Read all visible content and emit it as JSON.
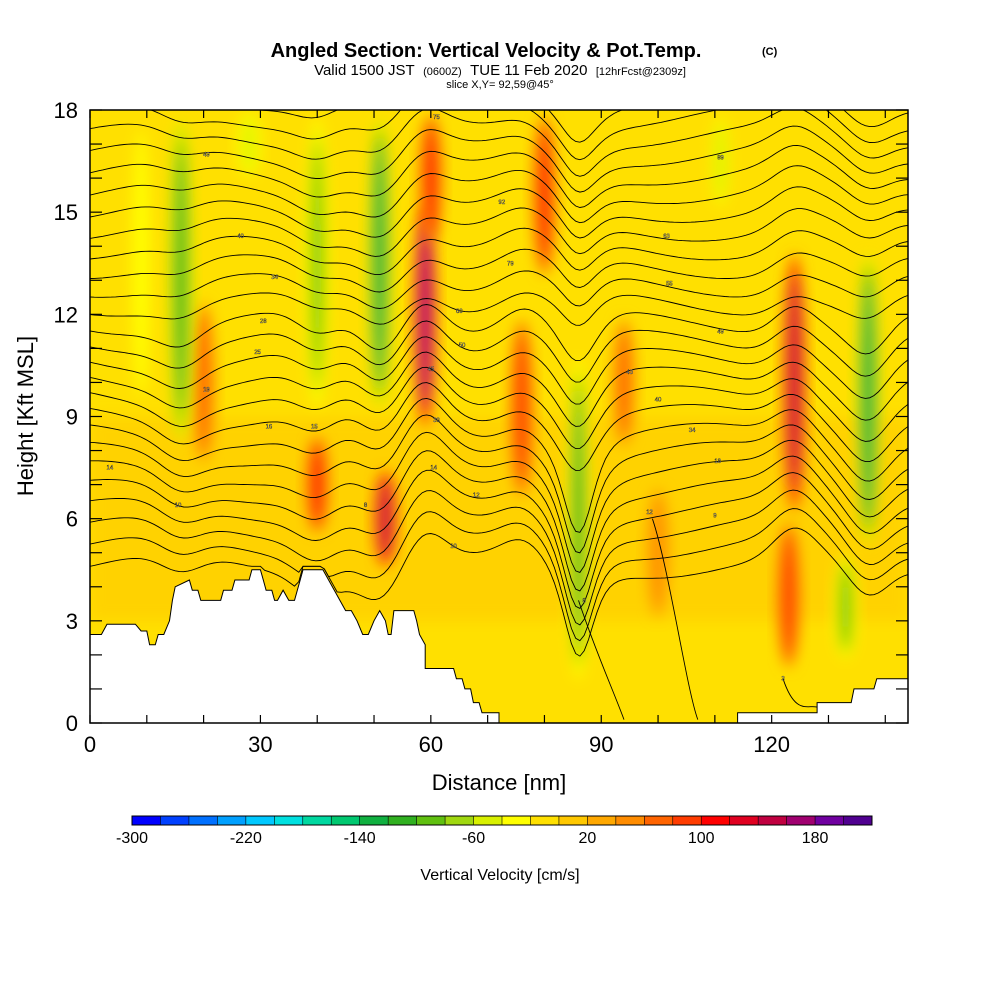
{
  "chart_data": {
    "type": "heatmap",
    "title": "Angled Section: Vertical Velocity & Pot.Temp.",
    "title_suffix": "(C)",
    "subtitle_parts": [
      "Valid 1500 JST",
      "(0600Z)",
      "TUE 11 Feb 2020",
      "[12hrFcst@2309z]"
    ],
    "slice_label": "slice X,Y= 92,59@45°",
    "xlabel": "Distance [nm]",
    "ylabel": "Height [Kft MSL]",
    "xlim": [
      0,
      144
    ],
    "ylim": [
      0,
      18
    ],
    "xticks": [
      0,
      30,
      60,
      90,
      120
    ],
    "yticks": [
      0,
      3,
      6,
      9,
      12,
      15,
      18
    ],
    "colorbar": {
      "label": "Vertical Velocity [cm/s]",
      "range": [
        -300,
        220
      ],
      "step": 20,
      "tick_values": [
        -300,
        -220,
        -140,
        -60,
        20,
        100,
        180
      ],
      "colors": [
        "#0000ff",
        "#0040ff",
        "#0070ff",
        "#00a0ff",
        "#00c8ff",
        "#00e0e0",
        "#00d8a0",
        "#00c870",
        "#10b040",
        "#30b020",
        "#60c010",
        "#a0d810",
        "#d8f000",
        "#ffff00",
        "#ffe000",
        "#ffc800",
        "#ffa800",
        "#ff8c00",
        "#ff6400",
        "#ff3c00",
        "#ff0000",
        "#e00020",
        "#c00040",
        "#a00070",
        "#7000a0",
        "#500090"
      ]
    },
    "updrafts": [
      {
        "x": 20,
        "z0": 7.5,
        "z1": 12.5,
        "w": 70
      },
      {
        "x": 40,
        "z0": 5.5,
        "z1": 8.5,
        "w": 100
      },
      {
        "x": 52,
        "z0": 4.5,
        "z1": 7.5,
        "w": 140
      },
      {
        "x": 59,
        "z0": 8.5,
        "z1": 15.5,
        "w": 170
      },
      {
        "x": 60,
        "z0": 14,
        "z1": 18,
        "w": 110
      },
      {
        "x": 76,
        "z0": 6.5,
        "z1": 12,
        "w": 90
      },
      {
        "x": 80,
        "z0": 13,
        "z1": 18,
        "w": 100
      },
      {
        "x": 100,
        "z0": 3,
        "z1": 7,
        "w": 50
      },
      {
        "x": 124,
        "z0": 6,
        "z1": 14,
        "w": 150
      },
      {
        "x": 123,
        "z0": 1.5,
        "z1": 6,
        "w": 90
      },
      {
        "x": 94,
        "z0": 8,
        "z1": 12,
        "w": 60
      }
    ],
    "downdrafts": [
      {
        "x": 16,
        "z0": 8,
        "z1": 18,
        "w": -120
      },
      {
        "x": 28,
        "z0": 16,
        "z1": 18,
        "w": -60
      },
      {
        "x": 40,
        "z0": 9,
        "z1": 18,
        "w": -100
      },
      {
        "x": 51,
        "z0": 9,
        "z1": 18,
        "w": -140
      },
      {
        "x": 86,
        "z0": 1,
        "z1": 11,
        "w": -110
      },
      {
        "x": 111,
        "z0": 15,
        "z1": 18,
        "w": -50
      },
      {
        "x": 137,
        "z0": 5,
        "z1": 14,
        "w": -140
      },
      {
        "x": 133,
        "z0": 1.8,
        "z1": 5,
        "w": -100
      },
      {
        "x": 9,
        "z0": 9,
        "z1": 18,
        "w": -40
      }
    ],
    "terrain": [
      [
        0,
        2.6
      ],
      [
        2,
        2.6
      ],
      [
        3,
        2.9
      ],
      [
        8,
        2.9
      ],
      [
        9,
        2.7
      ],
      [
        10,
        2.7
      ],
      [
        10.5,
        2.3
      ],
      [
        11.5,
        2.3
      ],
      [
        12,
        2.6
      ],
      [
        13,
        2.6
      ],
      [
        14,
        3
      ],
      [
        14.5,
        3.6
      ],
      [
        15,
        4
      ],
      [
        17.5,
        4.2
      ],
      [
        18,
        3.9
      ],
      [
        19,
        3.9
      ],
      [
        19.5,
        3.6
      ],
      [
        23,
        3.6
      ],
      [
        23.5,
        3.9
      ],
      [
        25,
        3.9
      ],
      [
        25.5,
        4.2
      ],
      [
        28,
        4.2
      ],
      [
        28.5,
        4.5
      ],
      [
        30,
        4.5
      ],
      [
        30.5,
        4.2
      ],
      [
        31,
        3.9
      ],
      [
        32,
        3.9
      ],
      [
        32.5,
        3.6
      ],
      [
        33,
        3.6
      ],
      [
        34,
        3.9
      ],
      [
        35,
        3.6
      ],
      [
        36,
        3.6
      ],
      [
        37,
        4.2
      ],
      [
        37.5,
        4.5
      ],
      [
        41,
        4.5
      ],
      [
        42,
        4.2
      ],
      [
        43,
        3.9
      ],
      [
        44,
        3.6
      ],
      [
        45,
        3.3
      ],
      [
        46,
        3.3
      ],
      [
        47,
        3
      ],
      [
        48,
        2.6
      ],
      [
        49,
        2.6
      ],
      [
        50,
        3
      ],
      [
        51,
        3.3
      ],
      [
        52,
        3
      ],
      [
        52.5,
        2.6
      ],
      [
        53,
        2.6
      ],
      [
        53.5,
        3.3
      ],
      [
        57,
        3.3
      ],
      [
        57.5,
        3
      ],
      [
        58,
        2.6
      ],
      [
        59,
        2.3
      ],
      [
        59,
        1.6
      ],
      [
        64,
        1.6
      ],
      [
        64.5,
        1.3
      ],
      [
        65.5,
        1.3
      ],
      [
        66,
        1
      ],
      [
        67,
        1
      ],
      [
        67.5,
        0.6
      ],
      [
        68.5,
        0.6
      ],
      [
        69,
        0.3
      ],
      [
        72,
        0.3
      ],
      [
        72,
        0
      ],
      [
        114,
        0
      ],
      [
        114,
        0.3
      ],
      [
        117,
        0.3
      ],
      [
        123,
        0.3
      ],
      [
        125,
        0.3
      ],
      [
        128,
        0.3
      ],
      [
        128,
        0.6
      ],
      [
        134,
        0.6
      ],
      [
        134.5,
        1
      ],
      [
        138,
        1
      ],
      [
        138.5,
        1.3
      ],
      [
        144,
        1.3
      ]
    ],
    "theta_labels": [
      {
        "x": 61,
        "z": 17.8,
        "text": "75"
      },
      {
        "x": 20.5,
        "z": 16.7,
        "text": "49"
      },
      {
        "x": 26.5,
        "z": 14.3,
        "text": "40"
      },
      {
        "x": 32.5,
        "z": 13.1,
        "text": "34"
      },
      {
        "x": 30.5,
        "z": 11.8,
        "text": "28"
      },
      {
        "x": 29.5,
        "z": 10.9,
        "text": "25"
      },
      {
        "x": 20.5,
        "z": 9.8,
        "text": "19"
      },
      {
        "x": 31.5,
        "z": 8.7,
        "text": "16"
      },
      {
        "x": 3.5,
        "z": 7.5,
        "text": "14"
      },
      {
        "x": 15.5,
        "z": 6.4,
        "text": "10"
      },
      {
        "x": 39.5,
        "z": 8.7,
        "text": "15"
      },
      {
        "x": 48.5,
        "z": 6.4,
        "text": "8"
      },
      {
        "x": 65,
        "z": 12.1,
        "text": "60"
      },
      {
        "x": 65.5,
        "z": 11.1,
        "text": "50"
      },
      {
        "x": 60,
        "z": 10.4,
        "text": "45"
      },
      {
        "x": 61,
        "z": 8.9,
        "text": "39"
      },
      {
        "x": 60.5,
        "z": 7.5,
        "text": "14"
      },
      {
        "x": 68,
        "z": 6.7,
        "text": "12"
      },
      {
        "x": 64,
        "z": 5.2,
        "text": "10"
      },
      {
        "x": 87,
        "z": 3.6,
        "text": "8"
      },
      {
        "x": 72.5,
        "z": 15.3,
        "text": "92"
      },
      {
        "x": 74,
        "z": 13.5,
        "text": "79"
      },
      {
        "x": 101.5,
        "z": 14.3,
        "text": "63"
      },
      {
        "x": 102,
        "z": 12.9,
        "text": "55"
      },
      {
        "x": 111,
        "z": 16.6,
        "text": "89"
      },
      {
        "x": 111,
        "z": 11.5,
        "text": "49"
      },
      {
        "x": 95,
        "z": 10.3,
        "text": "43"
      },
      {
        "x": 100,
        "z": 9.5,
        "text": "40"
      },
      {
        "x": 106,
        "z": 8.6,
        "text": "34"
      },
      {
        "x": 110.5,
        "z": 7.7,
        "text": "18"
      },
      {
        "x": 98.5,
        "z": 6.2,
        "text": "12"
      },
      {
        "x": 110,
        "z": 6.1,
        "text": "9"
      },
      {
        "x": 122,
        "z": 1.3,
        "text": "3"
      }
    ]
  }
}
